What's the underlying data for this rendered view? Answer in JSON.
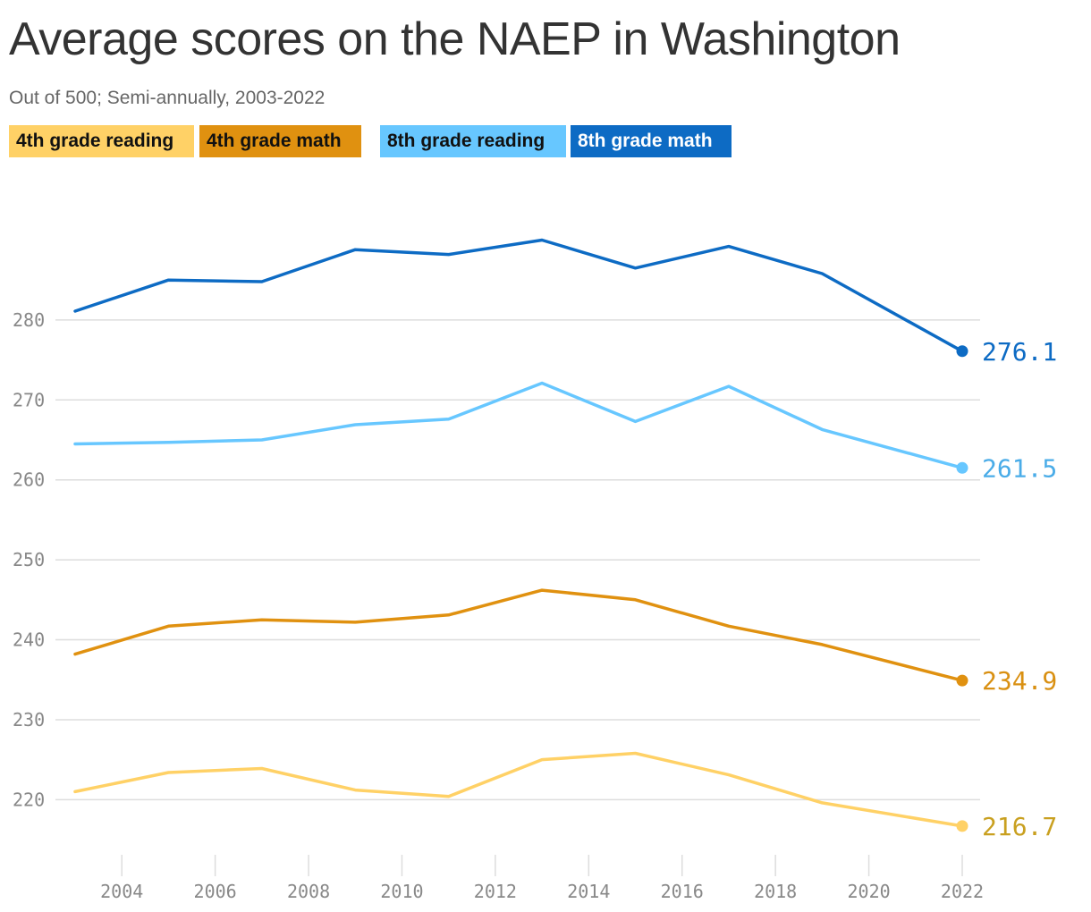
{
  "header": {
    "title": "Average scores on the NAEP in Washington",
    "subtitle": "Out of 500; Semi-annually, 2003-2022"
  },
  "legend": [
    {
      "label": "4th grade reading",
      "bg": "#ffd166",
      "fg": "#111111"
    },
    {
      "label": "4th grade math",
      "bg": "#e09110",
      "fg": "#111111"
    },
    {
      "label": "8th grade reading",
      "bg": "#67c7ff",
      "fg": "#111111"
    },
    {
      "label": "8th grade math",
      "bg": "#0d6bc4",
      "fg": "#ffffff"
    }
  ],
  "chart_data": {
    "type": "line",
    "title": "Average scores on the NAEP in Washington",
    "subtitle": "Out of 500; Semi-annually, 2003-2022",
    "x": [
      2003,
      2005,
      2007,
      2009,
      2011,
      2013,
      2015,
      2017,
      2019,
      2022
    ],
    "xlim": [
      2003,
      2022
    ],
    "xticks": [
      "2004",
      "2006",
      "2008",
      "2010",
      "2012",
      "2014",
      "2016",
      "2018",
      "2020",
      "2022"
    ],
    "ylim": [
      214,
      299
    ],
    "yticks": [
      "220",
      "230",
      "240",
      "250",
      "260",
      "270",
      "280"
    ],
    "grid": true,
    "series": [
      {
        "name": "8th grade math",
        "color": "#0d6bc4",
        "label_color": "#0d6bc4",
        "end_label": "276.1",
        "values": [
          281.1,
          285.0,
          284.8,
          288.8,
          288.2,
          290.0,
          286.5,
          289.2,
          285.8,
          276.1
        ]
      },
      {
        "name": "8th grade reading",
        "color": "#67c7ff",
        "label_color": "#4aace8",
        "end_label": "261.5",
        "values": [
          264.5,
          264.7,
          265.0,
          266.9,
          267.6,
          272.1,
          267.3,
          271.7,
          266.3,
          261.5
        ]
      },
      {
        "name": "4th grade math",
        "color": "#e09110",
        "label_color": "#d99012",
        "end_label": "234.9",
        "values": [
          238.2,
          241.7,
          242.5,
          242.2,
          243.1,
          246.2,
          245.0,
          241.7,
          239.4,
          234.9
        ]
      },
      {
        "name": "4th grade reading",
        "color": "#ffd166",
        "label_color": "#c9a020",
        "end_label": "216.7",
        "values": [
          221.0,
          223.4,
          223.9,
          221.2,
          220.4,
          225.0,
          225.8,
          223.1,
          219.6,
          216.7
        ]
      }
    ]
  }
}
